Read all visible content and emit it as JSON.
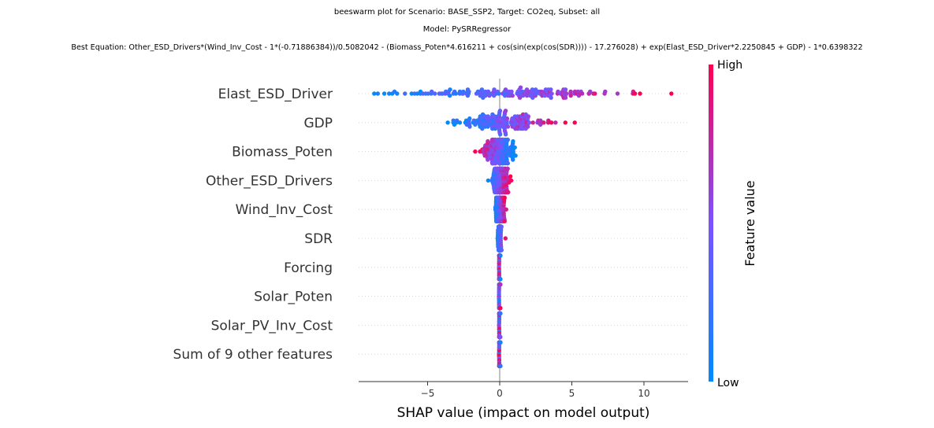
{
  "chart_data": {
    "type": "scatter",
    "subtype": "beeswarm",
    "title": "beeswarm plot for Scenario: BASE_SSP2, Target: CO2eq, Subset: all",
    "subtitle": "Model: PySRRegressor",
    "equation": "Best Equation: Other_ESD_Drivers*(Wind_Inv_Cost - 1*(-0.71886384))/0.5082042 - (Biomass_Poten*4.616211 + cos(sin(exp(cos(SDR)))) - 17.276028) + exp(Elast_ESD_Driver*2.2250845 + GDP) - 1*0.6398322",
    "xlabel": "SHAP value (impact on model output)",
    "xlim": [
      -9.8,
      13.0
    ],
    "xticks": [
      -5,
      0,
      5,
      10
    ],
    "grid": false,
    "features": [
      {
        "name": "Elast_ESD_Driver",
        "min": -8.7,
        "max": 11.9,
        "center": 0.5,
        "spread": 3.8,
        "dir": 1
      },
      {
        "name": "GDP",
        "min": -3.6,
        "max": 5.2,
        "center": 0.2,
        "spread": 1.5,
        "dir": 1
      },
      {
        "name": "Biomass_Poten",
        "min": -1.7,
        "max": 1.1,
        "center": -0.1,
        "spread": 0.55,
        "dir": -1
      },
      {
        "name": "Other_ESD_Drivers",
        "min": -0.8,
        "max": 0.8,
        "center": 0.05,
        "spread": 0.3,
        "dir": 1
      },
      {
        "name": "Wind_Inv_Cost",
        "min": -0.3,
        "max": 0.45,
        "center": 0.0,
        "spread": 0.15,
        "dir": 1
      },
      {
        "name": "SDR",
        "min": -0.15,
        "max": 0.4,
        "center": 0.0,
        "spread": 0.06,
        "dir": 1
      },
      {
        "name": "Forcing",
        "min": -0.05,
        "max": 0.05,
        "center": 0.0,
        "spread": 0.02,
        "dir": 0
      },
      {
        "name": "Solar_Poten",
        "min": -0.05,
        "max": 0.05,
        "center": 0.0,
        "spread": 0.02,
        "dir": 0
      },
      {
        "name": "Solar_PV_Inv_Cost",
        "min": -0.05,
        "max": 0.05,
        "center": 0.0,
        "spread": 0.02,
        "dir": 0
      },
      {
        "name": "Sum of 9 other features",
        "min": -0.05,
        "max": 0.05,
        "center": 0.0,
        "spread": 0.02,
        "dir": 0
      }
    ],
    "colorbar": {
      "title": "Feature value",
      "high_label": "High",
      "low_label": "Low"
    },
    "colors": {
      "low": "#008bfb",
      "mid": "#7c52ff",
      "high": "#ff0051",
      "zero_line": "#999999",
      "text": "#333333"
    }
  }
}
